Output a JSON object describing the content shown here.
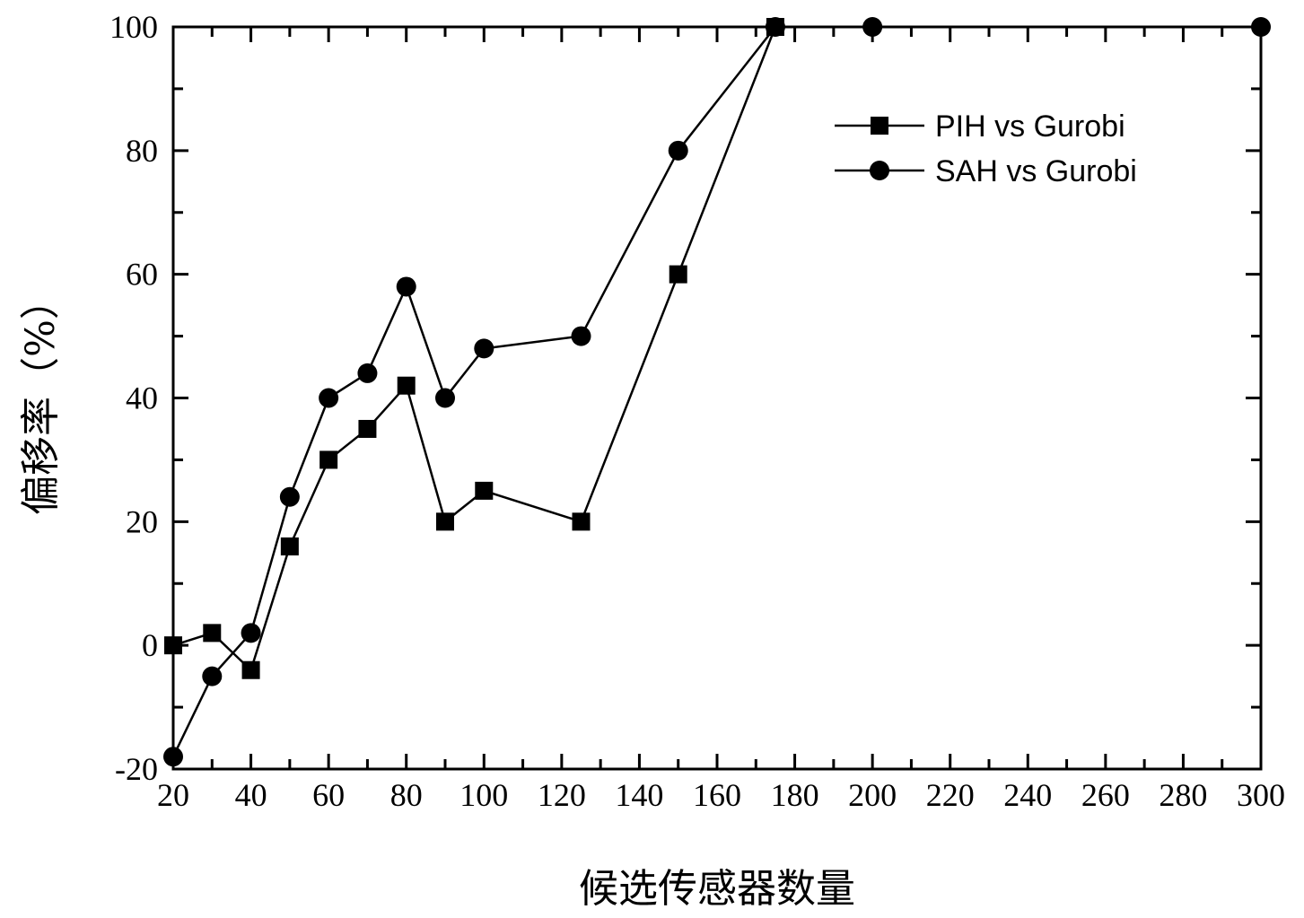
{
  "chart_data": {
    "type": "line",
    "title": "",
    "xlabel": "候选传感器数量",
    "ylabel": "偏移率（%）",
    "xlim": [
      20,
      300
    ],
    "ylim": [
      -20,
      100
    ],
    "xticks": [
      20,
      40,
      60,
      80,
      100,
      120,
      140,
      160,
      180,
      200,
      220,
      240,
      260,
      280,
      300
    ],
    "yticks": [
      -20,
      0,
      20,
      40,
      60,
      80,
      100
    ],
    "grid": false,
    "legend_position": "top-right",
    "series": [
      {
        "name": "PIH vs Gurobi",
        "marker": "square",
        "x": [
          20,
          30,
          40,
          50,
          60,
          70,
          80,
          90,
          100,
          125,
          150,
          175
        ],
        "y": [
          0,
          2,
          -4,
          16,
          30,
          35,
          42,
          20,
          25,
          20,
          60,
          100
        ]
      },
      {
        "name": "SAH vs Gurobi",
        "marker": "circle",
        "x": [
          20,
          30,
          40,
          50,
          60,
          70,
          80,
          90,
          100,
          125,
          150,
          175,
          200,
          300
        ],
        "y": [
          -18,
          -5,
          2,
          24,
          40,
          44,
          58,
          40,
          48,
          50,
          80,
          100,
          100,
          100
        ],
        "connected_until_index": 11
      }
    ]
  }
}
